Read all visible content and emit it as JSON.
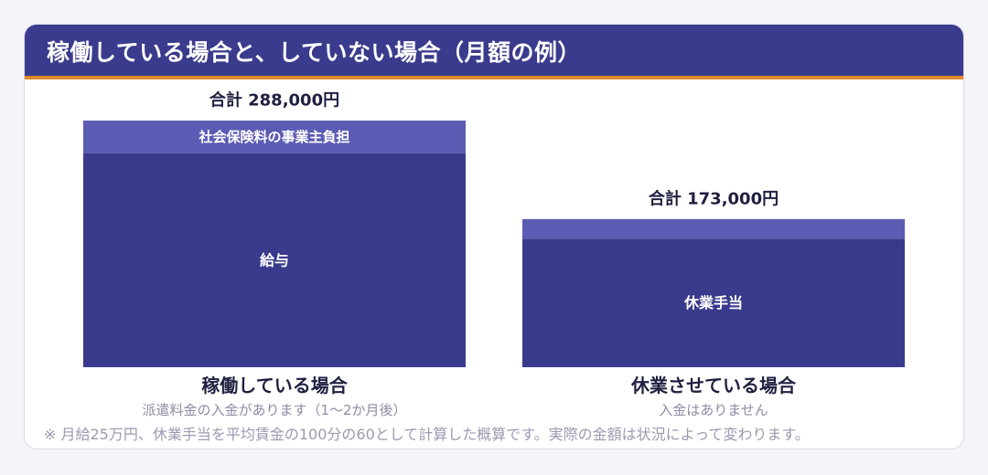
{
  "title": "稼働している場合と、していない場合（月額の例）",
  "colors": {
    "header_bg": "#3b3b8d",
    "header_underline": "#e08a2c",
    "bar_main": "#3a3a8c",
    "bar_top": "#5c5cb4",
    "text_dark": "#1f2040",
    "text_muted": "#8c8ca6"
  },
  "chart_data": {
    "type": "bar",
    "stacked": true,
    "ylim": [
      0,
      288000
    ],
    "unit": "円",
    "categories": [
      "稼働している場合",
      "休業させている場合"
    ],
    "category_subtitles": [
      "派遣料金の入金があります（1〜2か月後）",
      "入金はありません"
    ],
    "totals": [
      288000,
      173000
    ],
    "total_labels": [
      "合計 288,000円",
      "合計 173,000円"
    ],
    "series": [
      {
        "name": "給与",
        "values": [
          250000,
          0
        ]
      },
      {
        "name": "休業手当",
        "values": [
          0,
          150000
        ]
      },
      {
        "name": "社会保険料の事業主負担",
        "values": [
          38000,
          23000
        ]
      }
    ],
    "segment_labels": [
      [
        "給与",
        "社会保険料の事業主負担"
      ],
      [
        "休業手当",
        ""
      ]
    ]
  },
  "footnote": "※ 月給25万円、休業手当を平均賃金の100分の60として計算した概算です。実際の金額は状況によって変わります。"
}
